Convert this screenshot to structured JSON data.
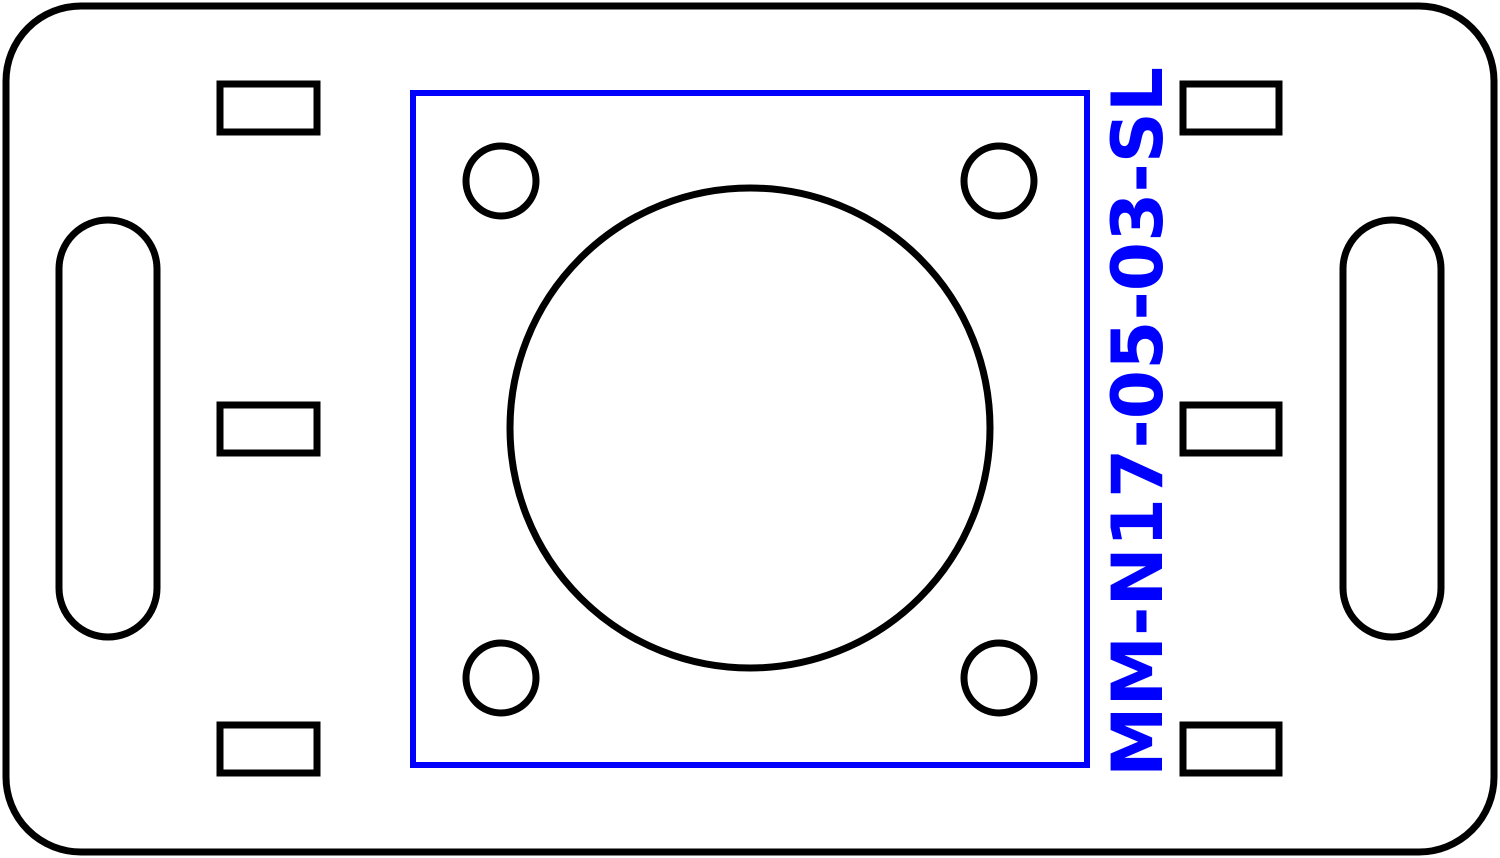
{
  "drawing": {
    "part_number": "MM-N17-05-03-SL",
    "outline_color": "#000000",
    "accent_color": "#0000ff",
    "background": "#ffffff"
  }
}
